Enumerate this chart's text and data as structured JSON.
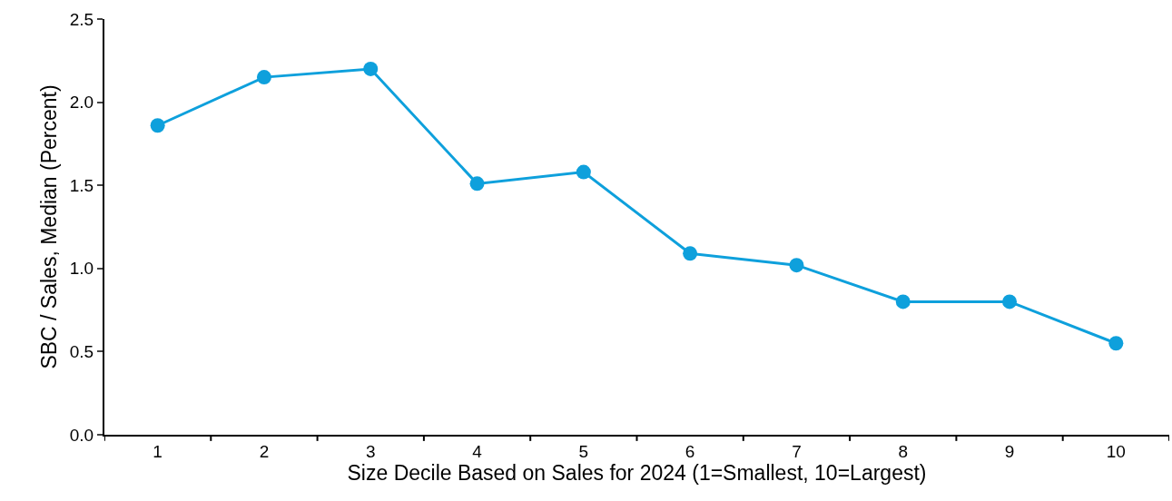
{
  "chart_data": {
    "type": "line",
    "xlabel": "Size Decile Based on Sales for 2024 (1=Smallest, 10=Largest)",
    "ylabel": "SBC / Sales, Median (Percent)",
    "categories": [
      "1",
      "2",
      "3",
      "4",
      "5",
      "6",
      "7",
      "8",
      "9",
      "10"
    ],
    "series": [
      {
        "color": "#0ea0dc",
        "values": [
          1.86,
          2.15,
          2.2,
          1.51,
          1.58,
          1.09,
          1.02,
          0.8,
          0.8,
          0.55
        ]
      }
    ],
    "ylim": [
      0,
      2.5
    ],
    "yticks": [
      {
        "value": 0,
        "label": "0.0"
      },
      {
        "value": 0.5,
        "label": "0.5"
      },
      {
        "value": 1,
        "label": "1.0"
      },
      {
        "value": 1.5,
        "label": "1.5"
      },
      {
        "value": 2,
        "label": "2.0"
      },
      {
        "value": 2.5,
        "label": "2.5"
      }
    ],
    "legend": false,
    "marker": "circle",
    "line_style": "solid"
  }
}
